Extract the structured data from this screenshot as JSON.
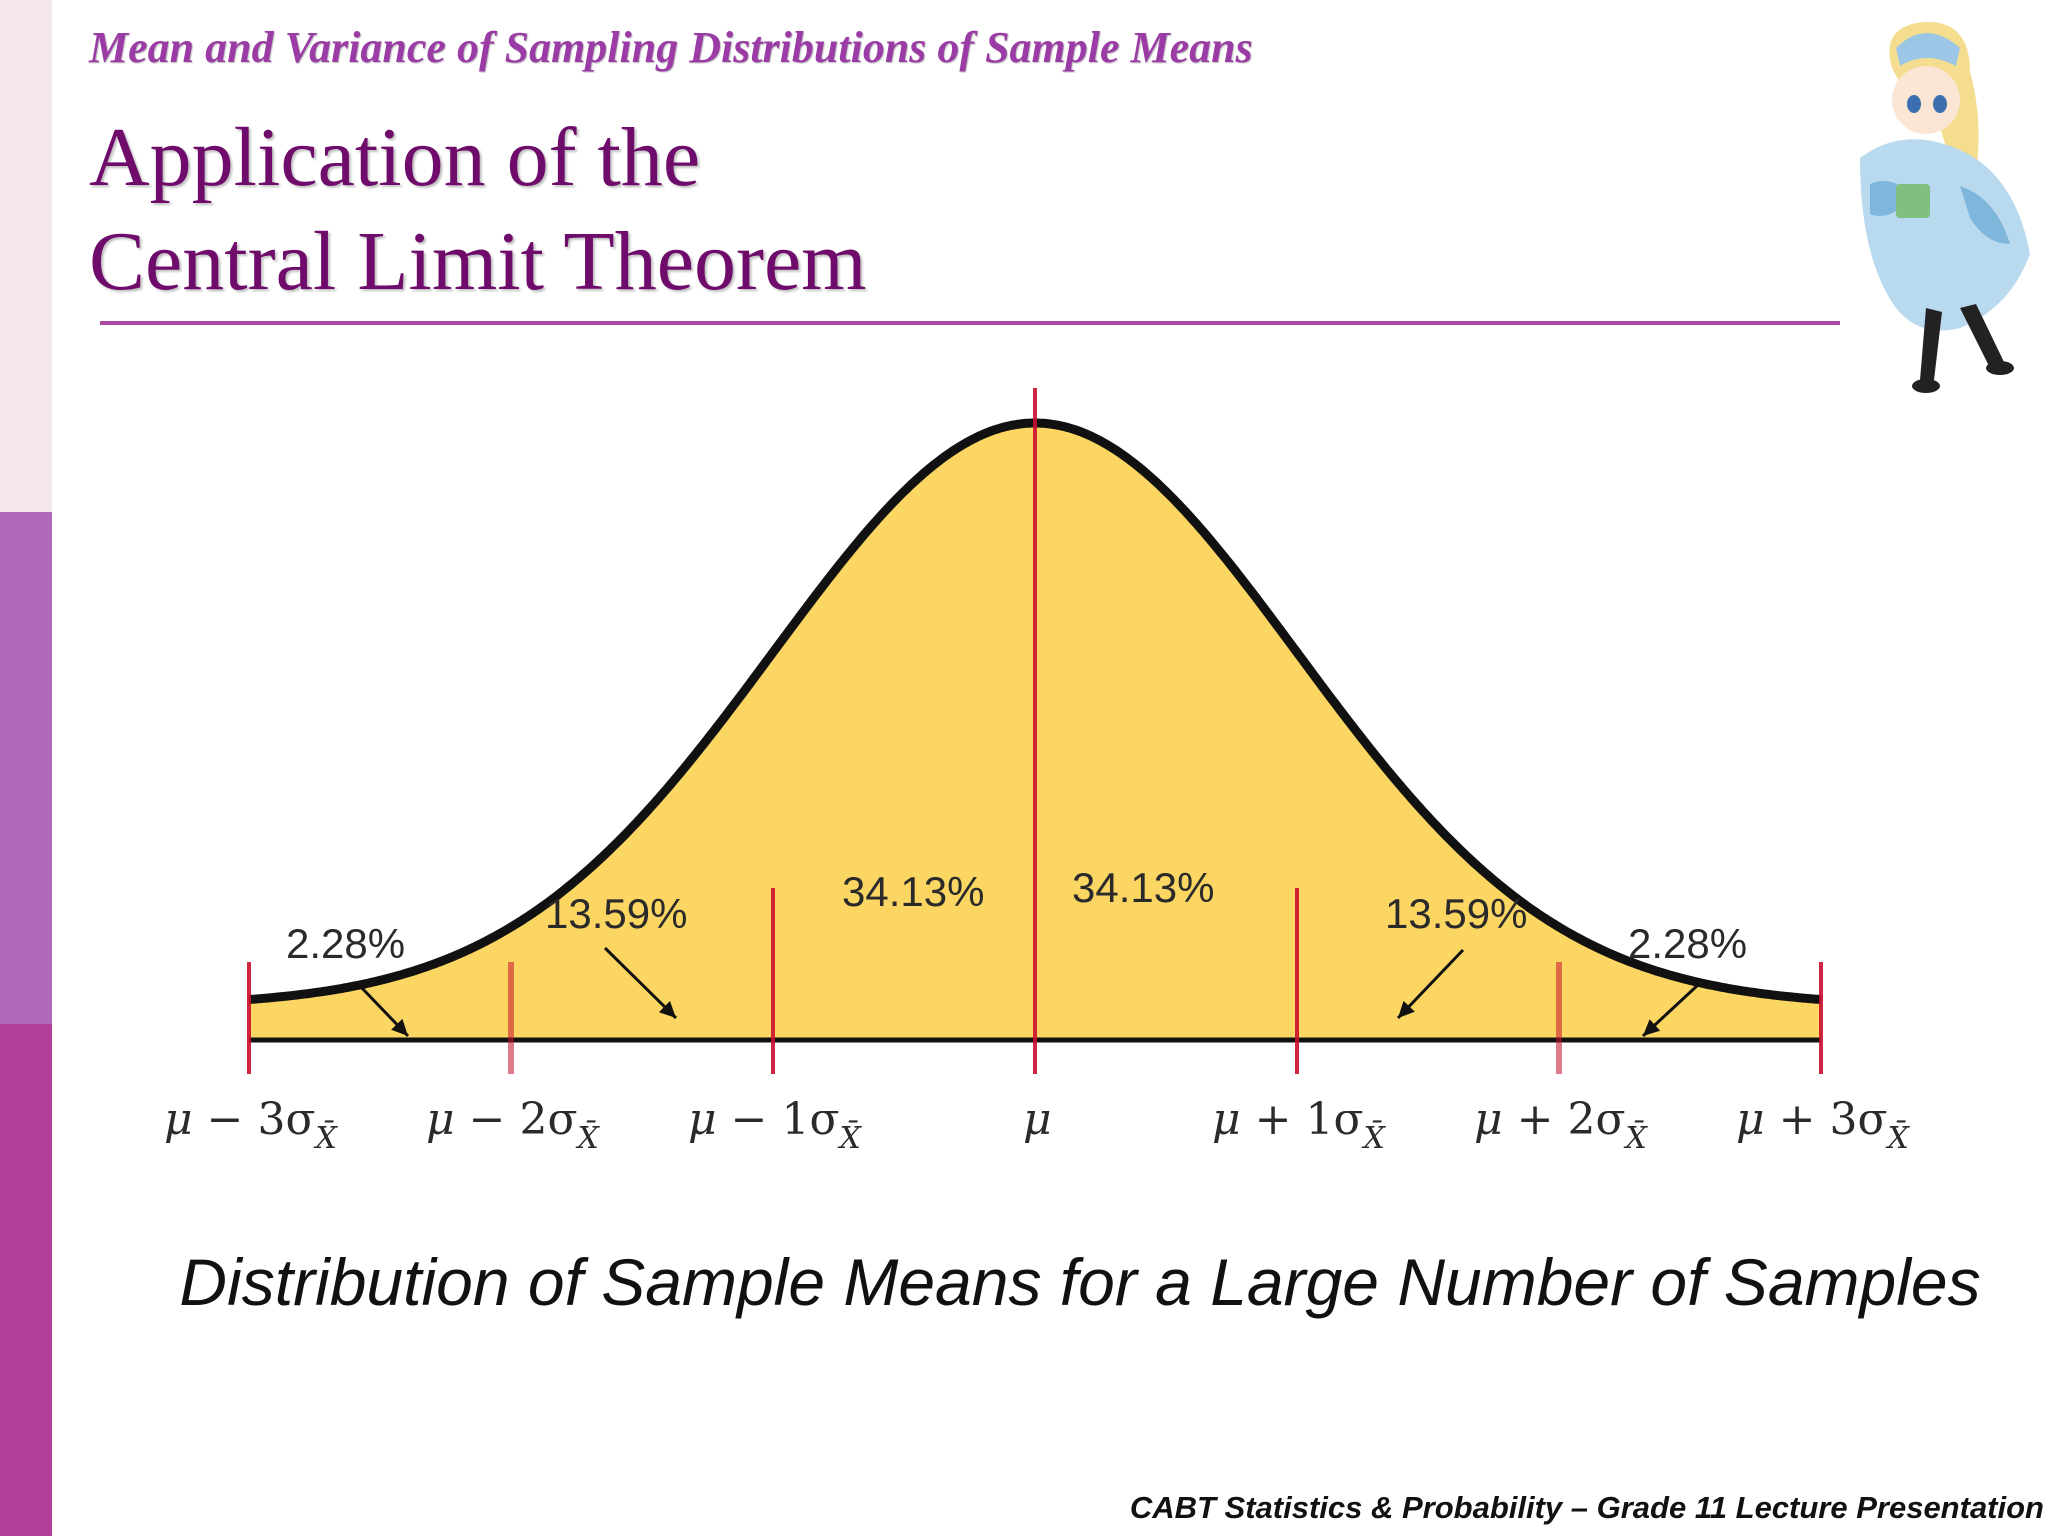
{
  "slide": {
    "subtitle": "Mean and Variance of Sampling Distributions of Sample Means",
    "title_line1": "Application of the",
    "title_line2": "Central Limit Theorem",
    "caption": "Distribution of Sample Means for a Large Number of Samples",
    "footer": "CABT Statistics & Probability – Grade 11 Lecture Presentation",
    "accent_color": "#6e0b6b",
    "sidebar_colors": [
      "#f6e6ee",
      "#ae69b8",
      "#b13e97"
    ]
  },
  "diagram": {
    "fill_color": "#fcd663",
    "curve_color": "#111111",
    "divider_color": "#c8102e",
    "region_labels": [
      {
        "name": "left-tail",
        "text": "2.28%"
      },
      {
        "name": "left-second",
        "text": "13.59%"
      },
      {
        "name": "left-center",
        "text": "34.13%"
      },
      {
        "name": "right-center",
        "text": "34.13%"
      },
      {
        "name": "right-second",
        "text": "13.59%"
      },
      {
        "name": "right-tail",
        "text": "2.28%"
      }
    ],
    "axis_ticks": [
      {
        "mu": "μ",
        "rest": " − 3σ",
        "sub": "X̄"
      },
      {
        "mu": "μ",
        "rest": " − 2σ",
        "sub": "X̄"
      },
      {
        "mu": "μ",
        "rest": " − 1σ",
        "sub": "X̄"
      },
      {
        "mu": "μ",
        "rest": "",
        "sub": ""
      },
      {
        "mu": "μ",
        "rest": " + 1σ",
        "sub": "X̄"
      },
      {
        "mu": "μ",
        "rest": " + 2σ",
        "sub": "X̄"
      },
      {
        "mu": "μ",
        "rest": " + 3σ",
        "sub": "X̄"
      }
    ]
  }
}
